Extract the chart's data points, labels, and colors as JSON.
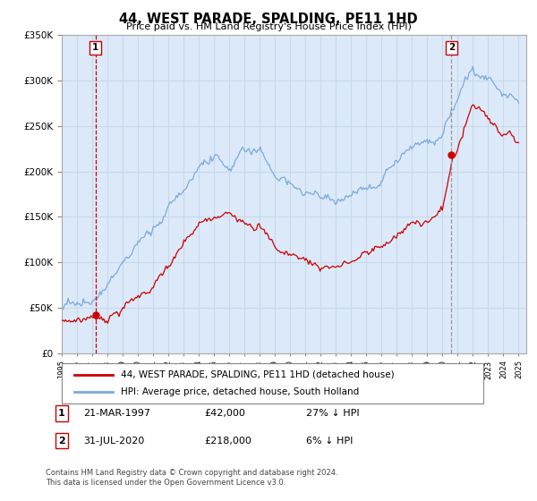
{
  "title": "44, WEST PARADE, SPALDING, PE11 1HD",
  "subtitle": "Price paid vs. HM Land Registry's House Price Index (HPI)",
  "legend_line1": "44, WEST PARADE, SPALDING, PE11 1HD (detached house)",
  "legend_line2": "HPI: Average price, detached house, South Holland",
  "annotation1_label": "1",
  "annotation1_date": "21-MAR-1997",
  "annotation1_price": "£42,000",
  "annotation1_hpi": "27% ↓ HPI",
  "annotation1_year": 1997.22,
  "annotation1_value": 42000,
  "annotation2_label": "2",
  "annotation2_date": "31-JUL-2020",
  "annotation2_price": "£218,000",
  "annotation2_hpi": "6% ↓ HPI",
  "annotation2_year": 2020.58,
  "annotation2_value": 218000,
  "footer1": "Contains HM Land Registry data © Crown copyright and database right 2024.",
  "footer2": "This data is licensed under the Open Government Licence v3.0.",
  "ylim": [
    0,
    350000
  ],
  "xlim": [
    1995.0,
    2025.5
  ],
  "fig_bg": "#ffffff",
  "plot_bg": "#dce9f8",
  "line_color_red": "#cc0000",
  "line_color_blue": "#7aaadd",
  "grid_color": "#c8d8ec",
  "dashed_line_color_red": "#cc0000",
  "dashed_line_color_grey": "#999999",
  "tick_color": "#888888"
}
